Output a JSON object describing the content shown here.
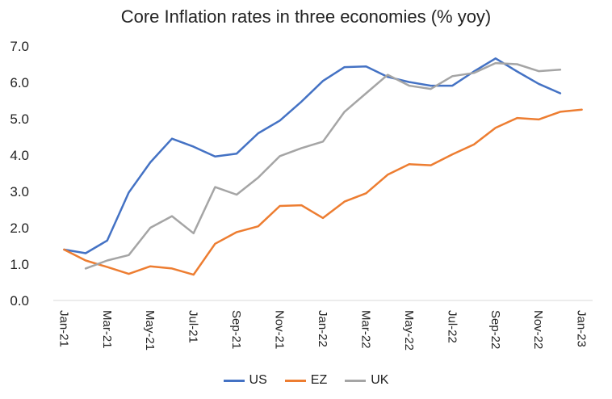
{
  "chart_data": {
    "type": "line",
    "title": "Core Inflation rates in three economies (% yoy)",
    "xlabel": "",
    "ylabel": "",
    "ylim": [
      0,
      7
    ],
    "yticks": [
      "0.0",
      "1.0",
      "2.0",
      "3.0",
      "4.0",
      "5.0",
      "6.0",
      "7.0"
    ],
    "x": [
      "Jan-21",
      "Feb-21",
      "Mar-21",
      "Apr-21",
      "May-21",
      "Jun-21",
      "Jul-21",
      "Aug-21",
      "Sep-21",
      "Oct-21",
      "Nov-21",
      "Dec-21",
      "Jan-22",
      "Feb-22",
      "Mar-22",
      "Apr-22",
      "May-22",
      "Jun-22",
      "Jul-22",
      "Aug-22",
      "Sep-22",
      "Oct-22",
      "Nov-22",
      "Dec-22",
      "Jan-23"
    ],
    "xtick_labels": [
      "Jan-21",
      "Mar-21",
      "May-21",
      "Jul-21",
      "Sep-21",
      "Nov-21",
      "Jan-22",
      "Mar-22",
      "May-22",
      "Jul-22",
      "Sep-22",
      "Nov-22",
      "Jan-23"
    ],
    "grid": false,
    "legend": "bottom",
    "series": [
      {
        "name": "US",
        "color": "#4472c4",
        "values": [
          1.4,
          1.3,
          1.65,
          2.97,
          3.8,
          4.45,
          4.23,
          3.96,
          4.04,
          4.6,
          4.95,
          5.47,
          6.04,
          6.42,
          6.44,
          6.15,
          6.01,
          5.91,
          5.91,
          6.3,
          6.66,
          6.3,
          5.96,
          5.7,
          null
        ]
      },
      {
        "name": "EZ",
        "color": "#ed7d31",
        "values": [
          1.4,
          1.1,
          0.92,
          0.73,
          0.94,
          0.88,
          0.71,
          1.56,
          1.88,
          2.04,
          2.6,
          2.62,
          2.27,
          2.72,
          2.95,
          3.46,
          3.75,
          3.72,
          4.02,
          4.29,
          4.75,
          5.02,
          4.98,
          5.19,
          5.25
        ]
      },
      {
        "name": "UK",
        "color": "#a5a5a5",
        "values": [
          null,
          0.88,
          1.1,
          1.25,
          2.0,
          2.32,
          1.85,
          3.12,
          2.91,
          3.38,
          3.97,
          4.19,
          4.37,
          5.19,
          5.7,
          6.21,
          5.91,
          5.82,
          6.17,
          6.26,
          6.53,
          6.5,
          6.31,
          6.35,
          null
        ]
      }
    ]
  }
}
